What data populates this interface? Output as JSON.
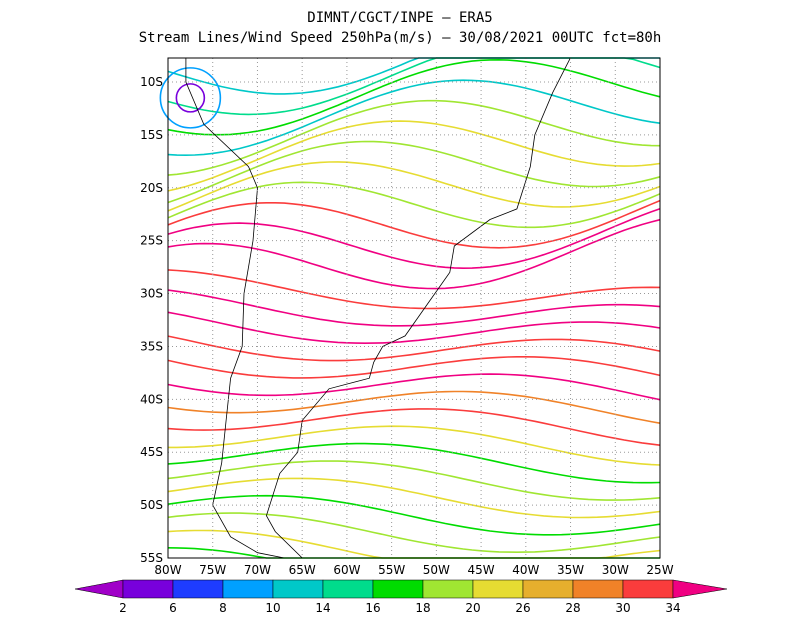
{
  "header": {
    "line1": "DIMNT/CGCT/INPE  —  ERA5",
    "line2": "Stream Lines/Wind Speed 250hPa(m/s)  —  30/08/2021 00UTC fct=80h"
  },
  "map": {
    "lon_ticks": [
      "80W",
      "75W",
      "70W",
      "65W",
      "60W",
      "55W",
      "50W",
      "45W",
      "40W",
      "35W",
      "30W",
      "25W"
    ],
    "lat_ticks": [
      "10S",
      "15S",
      "20S",
      "25S",
      "30S",
      "35S",
      "40S",
      "45S",
      "50S",
      "55S"
    ]
  },
  "colorbar": {
    "labels": [
      2,
      6,
      8,
      10,
      14,
      16,
      18,
      20,
      26,
      28,
      30,
      34
    ],
    "colors": [
      "#a000c8",
      "#7800dc",
      "#1e3cff",
      "#00a0ff",
      "#00c8c8",
      "#00dc8c",
      "#00dc00",
      "#a0e632",
      "#e6dc32",
      "#e6af2d",
      "#f08228",
      "#fa3c3c",
      "#f00082"
    ]
  }
}
